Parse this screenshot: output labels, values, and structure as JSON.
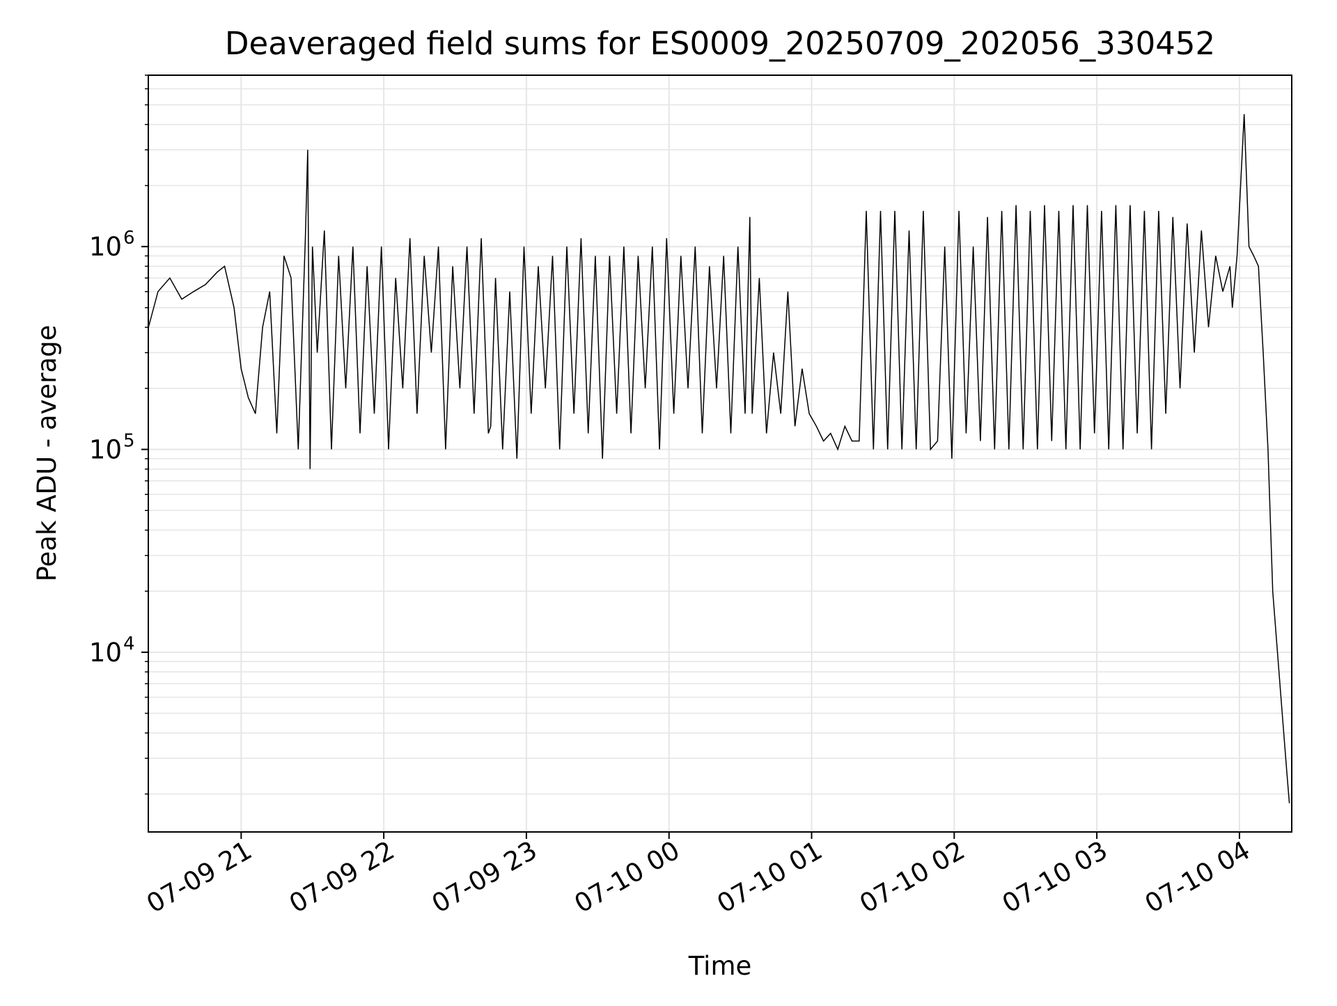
{
  "chart_data": {
    "type": "line",
    "title": "Deaveraged field sums for ES0009_20250709_202056_330452",
    "xlabel": "Time",
    "ylabel": "Peak ADU - average",
    "yscale": "log",
    "ylim": [
      1300,
      7000000
    ],
    "xlim": [
      "2025-07-09 20:20:56",
      "2025-07-10 04:22:00"
    ],
    "grid": true,
    "line_color": "#000000",
    "x_ticks": [
      {
        "label": "07-09 21",
        "value": "2025-07-09 21:00"
      },
      {
        "label": "07-09 22",
        "value": "2025-07-09 22:00"
      },
      {
        "label": "07-09 23",
        "value": "2025-07-09 23:00"
      },
      {
        "label": "07-10 00",
        "value": "2025-07-10 00:00"
      },
      {
        "label": "07-10 01",
        "value": "2025-07-10 01:00"
      },
      {
        "label": "07-10 02",
        "value": "2025-07-10 02:00"
      },
      {
        "label": "07-10 03",
        "value": "2025-07-10 03:00"
      },
      {
        "label": "07-10 04",
        "value": "2025-07-10 04:00"
      }
    ],
    "y_ticks": [
      {
        "base": "10",
        "exp": "4",
        "value": 10000
      },
      {
        "base": "10",
        "exp": "5",
        "value": 100000
      },
      {
        "base": "10",
        "exp": "6",
        "value": 1000000
      }
    ],
    "series": [
      {
        "x": [
          "2025-07-09 20:21",
          "2025-07-09 20:25",
          "2025-07-09 20:30",
          "2025-07-09 20:35",
          "2025-07-09 20:40",
          "2025-07-09 20:45",
          "2025-07-09 20:50",
          "2025-07-09 20:53",
          "2025-07-09 20:57",
          "2025-07-09 21:00",
          "2025-07-09 21:03",
          "2025-07-09 21:06",
          "2025-07-09 21:09",
          "2025-07-09 21:12",
          "2025-07-09 21:15",
          "2025-07-09 21:18",
          "2025-07-09 21:21",
          "2025-07-09 21:24",
          "2025-07-09 21:27",
          "2025-07-09 21:28",
          "2025-07-09 21:29",
          "2025-07-09 21:30",
          "2025-07-09 21:32",
          "2025-07-09 21:35",
          "2025-07-09 21:38",
          "2025-07-09 21:41",
          "2025-07-09 21:44",
          "2025-07-09 21:47",
          "2025-07-09 21:50",
          "2025-07-09 21:53",
          "2025-07-09 21:56",
          "2025-07-09 21:59",
          "2025-07-09 22:02",
          "2025-07-09 22:05",
          "2025-07-09 22:08",
          "2025-07-09 22:11",
          "2025-07-09 22:14",
          "2025-07-09 22:17",
          "2025-07-09 22:20",
          "2025-07-09 22:23",
          "2025-07-09 22:26",
          "2025-07-09 22:29",
          "2025-07-09 22:32",
          "2025-07-09 22:35",
          "2025-07-09 22:38",
          "2025-07-09 22:41",
          "2025-07-09 22:44",
          "2025-07-09 22:45",
          "2025-07-09 22:47",
          "2025-07-09 22:50",
          "2025-07-09 22:53",
          "2025-07-09 22:56",
          "2025-07-09 22:59",
          "2025-07-09 23:02",
          "2025-07-09 23:05",
          "2025-07-09 23:08",
          "2025-07-09 23:11",
          "2025-07-09 23:14",
          "2025-07-09 23:17",
          "2025-07-09 23:20",
          "2025-07-09 23:23",
          "2025-07-09 23:26",
          "2025-07-09 23:29",
          "2025-07-09 23:32",
          "2025-07-09 23:35",
          "2025-07-09 23:38",
          "2025-07-09 23:41",
          "2025-07-09 23:44",
          "2025-07-09 23:47",
          "2025-07-09 23:50",
          "2025-07-09 23:53",
          "2025-07-09 23:56",
          "2025-07-09 23:59",
          "2025-07-10 00:02",
          "2025-07-10 00:05",
          "2025-07-10 00:08",
          "2025-07-10 00:11",
          "2025-07-10 00:14",
          "2025-07-10 00:17",
          "2025-07-10 00:20",
          "2025-07-10 00:23",
          "2025-07-10 00:26",
          "2025-07-10 00:29",
          "2025-07-10 00:32",
          "2025-07-10 00:34",
          "2025-07-10 00:35",
          "2025-07-10 00:38",
          "2025-07-10 00:41",
          "2025-07-10 00:44",
          "2025-07-10 00:47",
          "2025-07-10 00:50",
          "2025-07-10 00:53",
          "2025-07-10 00:56",
          "2025-07-10 00:59",
          "2025-07-10 01:02",
          "2025-07-10 01:05",
          "2025-07-10 01:08",
          "2025-07-10 01:11",
          "2025-07-10 01:14",
          "2025-07-10 01:17",
          "2025-07-10 01:20",
          "2025-07-10 01:23",
          "2025-07-10 01:26",
          "2025-07-10 01:29",
          "2025-07-10 01:32",
          "2025-07-10 01:35",
          "2025-07-10 01:38",
          "2025-07-10 01:41",
          "2025-07-10 01:44",
          "2025-07-10 01:47",
          "2025-07-10 01:50",
          "2025-07-10 01:53",
          "2025-07-10 01:56",
          "2025-07-10 01:59",
          "2025-07-10 02:02",
          "2025-07-10 02:05",
          "2025-07-10 02:08",
          "2025-07-10 02:11",
          "2025-07-10 02:14",
          "2025-07-10 02:17",
          "2025-07-10 02:20",
          "2025-07-10 02:23",
          "2025-07-10 02:26",
          "2025-07-10 02:29",
          "2025-07-10 02:32",
          "2025-07-10 02:35",
          "2025-07-10 02:38",
          "2025-07-10 02:41",
          "2025-07-10 02:44",
          "2025-07-10 02:47",
          "2025-07-10 02:50",
          "2025-07-10 02:53",
          "2025-07-10 02:56",
          "2025-07-10 02:59",
          "2025-07-10 03:02",
          "2025-07-10 03:05",
          "2025-07-10 03:08",
          "2025-07-10 03:11",
          "2025-07-10 03:14",
          "2025-07-10 03:17",
          "2025-07-10 03:20",
          "2025-07-10 03:23",
          "2025-07-10 03:26",
          "2025-07-10 03:29",
          "2025-07-10 03:32",
          "2025-07-10 03:35",
          "2025-07-10 03:38",
          "2025-07-10 03:41",
          "2025-07-10 03:44",
          "2025-07-10 03:47",
          "2025-07-10 03:50",
          "2025-07-10 03:53",
          "2025-07-10 03:56",
          "2025-07-10 03:57",
          "2025-07-10 03:59",
          "2025-07-10 04:02",
          "2025-07-10 04:04",
          "2025-07-10 04:06",
          "2025-07-10 04:08",
          "2025-07-10 04:10",
          "2025-07-10 04:12",
          "2025-07-10 04:14",
          "2025-07-10 04:16",
          "2025-07-10 04:18",
          "2025-07-10 04:20",
          "2025-07-10 04:21"
        ],
        "y": [
          400000,
          600000,
          700000,
          550000,
          600000,
          650000,
          750000,
          800000,
          500000,
          250000,
          180000,
          150000,
          400000,
          600000,
          120000,
          900000,
          700000,
          100000,
          1100000,
          3000000,
          80000,
          1000000,
          300000,
          1200000,
          100000,
          900000,
          200000,
          1000000,
          120000,
          800000,
          150000,
          1000000,
          100000,
          700000,
          200000,
          1100000,
          150000,
          900000,
          300000,
          1000000,
          100000,
          800000,
          200000,
          1000000,
          150000,
          1100000,
          120000,
          130000,
          700000,
          100000,
          600000,
          90000,
          1000000,
          150000,
          800000,
          200000,
          900000,
          100000,
          1000000,
          150000,
          1100000,
          120000,
          900000,
          90000,
          900000,
          150000,
          1000000,
          120000,
          900000,
          200000,
          1000000,
          100000,
          1100000,
          150000,
          900000,
          200000,
          1000000,
          120000,
          800000,
          200000,
          900000,
          120000,
          1000000,
          150000,
          1400000,
          150000,
          700000,
          120000,
          300000,
          150000,
          600000,
          130000,
          250000,
          150000,
          130000,
          110000,
          120000,
          100000,
          130000,
          110000,
          110000,
          1500000,
          100000,
          1500000,
          100000,
          1500000,
          100000,
          1200000,
          100000,
          1500000,
          100000,
          110000,
          1000000,
          90000,
          1500000,
          120000,
          1000000,
          110000,
          1400000,
          100000,
          1500000,
          100000,
          1600000,
          100000,
          1500000,
          100000,
          1600000,
          110000,
          1500000,
          100000,
          1600000,
          100000,
          1600000,
          120000,
          1500000,
          100000,
          1600000,
          100000,
          1600000,
          120000,
          1500000,
          100000,
          1500000,
          150000,
          1400000,
          200000,
          1300000,
          300000,
          1200000,
          400000,
          900000,
          600000,
          800000,
          500000,
          900000,
          4500000,
          1000000,
          900000,
          800000,
          300000,
          100000,
          20000,
          10000,
          5000,
          2500,
          1800
        ]
      }
    ]
  }
}
